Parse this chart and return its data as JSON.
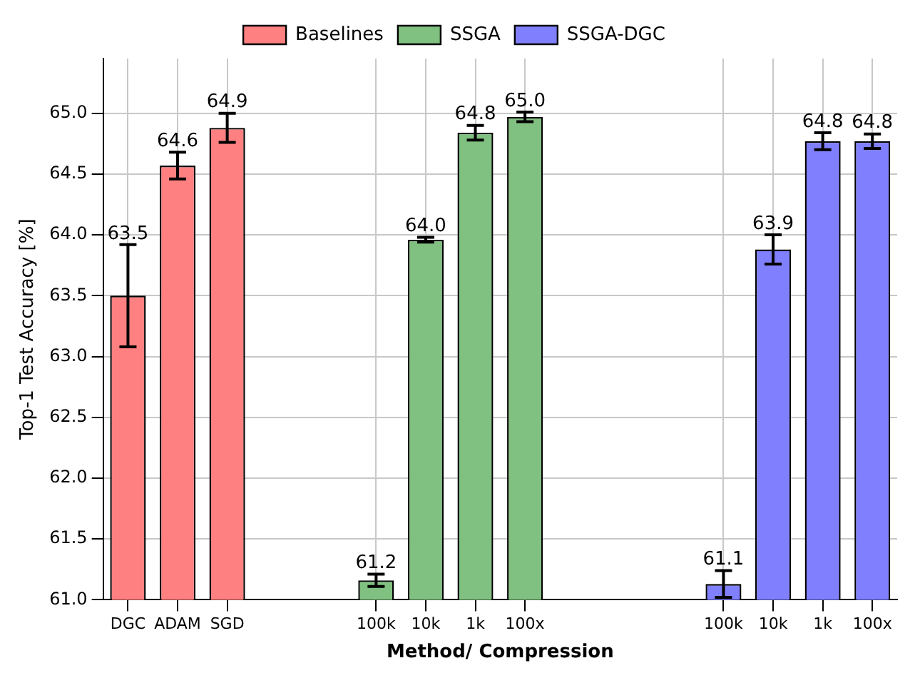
{
  "chart_data": {
    "type": "bar",
    "xlabel": "Method/ Compression",
    "ylabel": "Top-1 Test Accuracy [%]",
    "categories": [
      "DGC",
      "ADAM",
      "SGD",
      null,
      null,
      "100k",
      "10k",
      "1k",
      "100x",
      null,
      null,
      null,
      "100k",
      "10k",
      "1k",
      "100x"
    ],
    "series": [
      {
        "name": "Baselines",
        "color": "#ff8080",
        "values": [
          63.5,
          64.57,
          64.88,
          null,
          null,
          null,
          null,
          null,
          null,
          null,
          null,
          null,
          null,
          null,
          null,
          null
        ],
        "errors": [
          0.42,
          0.11,
          0.12,
          null,
          null,
          null,
          null,
          null,
          null,
          null,
          null,
          null,
          null,
          null,
          null,
          null
        ],
        "value_labels": [
          "63.5",
          "64.6",
          "64.9",
          null,
          null,
          null,
          null,
          null,
          null,
          null,
          null,
          null,
          null,
          null,
          null,
          null
        ]
      },
      {
        "name": "SSGA",
        "color": "#80c080",
        "values": [
          null,
          null,
          null,
          null,
          null,
          61.16,
          63.96,
          64.84,
          64.97,
          null,
          null,
          null,
          null,
          null,
          null,
          null
        ],
        "errors": [
          null,
          null,
          null,
          null,
          null,
          0.05,
          0.02,
          0.06,
          0.04,
          null,
          null,
          null,
          null,
          null,
          null,
          null
        ],
        "value_labels": [
          null,
          null,
          null,
          null,
          null,
          "61.2",
          "64.0",
          "64.8",
          "65.0",
          null,
          null,
          null,
          null,
          null,
          null,
          null
        ]
      },
      {
        "name": "SSGA-DGC",
        "color": "#8080ff",
        "values": [
          null,
          null,
          null,
          null,
          null,
          null,
          null,
          null,
          null,
          null,
          null,
          null,
          61.13,
          63.88,
          64.77,
          64.77
        ],
        "errors": [
          null,
          null,
          null,
          null,
          null,
          null,
          null,
          null,
          null,
          null,
          null,
          null,
          0.11,
          0.12,
          0.07,
          0.06
        ],
        "value_labels": [
          null,
          null,
          null,
          null,
          null,
          null,
          null,
          null,
          null,
          null,
          null,
          null,
          "61.1",
          "63.9",
          "64.8",
          "64.8"
        ]
      }
    ],
    "ylim": [
      61,
      65.45
    ],
    "yticks": [
      {
        "value": 61,
        "label": "61.0"
      },
      {
        "value": 61.5,
        "label": "61.5"
      },
      {
        "value": 62,
        "label": "62.0"
      },
      {
        "value": 62.5,
        "label": "62.5"
      },
      {
        "value": 63,
        "label": "63.0"
      },
      {
        "value": 63.5,
        "label": "63.5"
      },
      {
        "value": 64,
        "label": "64.0"
      },
      {
        "value": 64.5,
        "label": "64.5"
      },
      {
        "value": 65,
        "label": "65.0"
      }
    ],
    "grid": true,
    "legend": "top"
  }
}
